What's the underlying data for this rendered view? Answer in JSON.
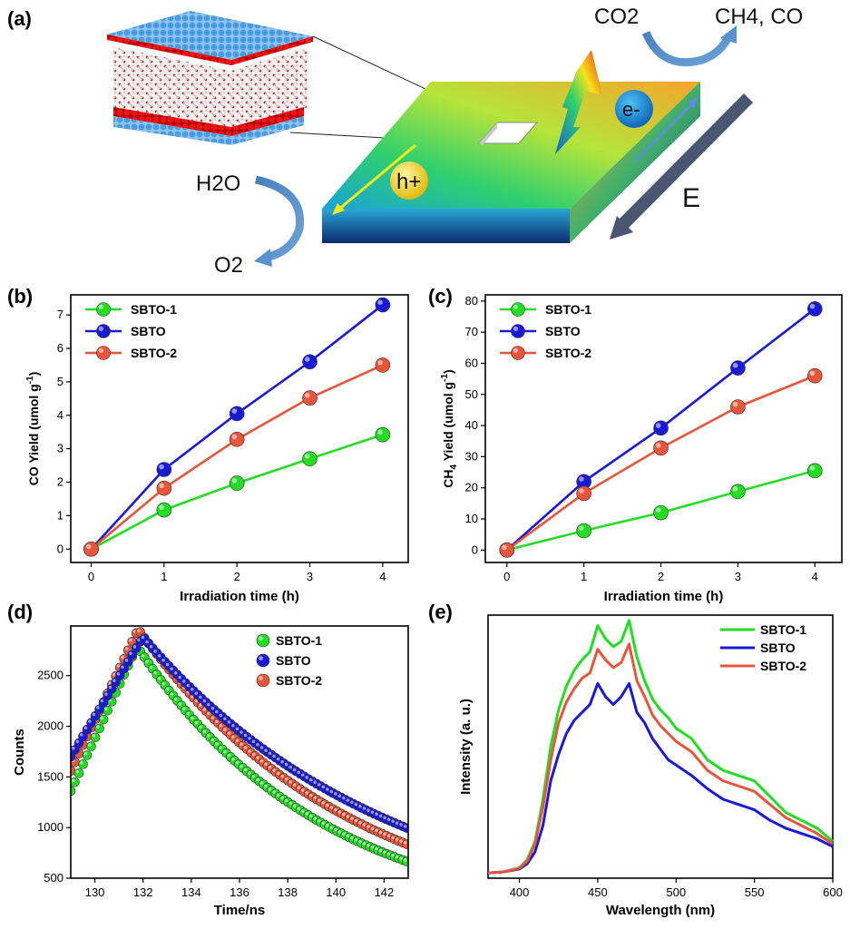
{
  "panels": {
    "a": "(a)",
    "b": "(b)",
    "c": "(c)",
    "d": "(d)",
    "e": "(e)"
  },
  "schematic": {
    "co2": "CO2",
    "co2_sub": "2",
    "products": "CH4, CO",
    "h2o": "H2O",
    "o2": "O2",
    "hole": "h+",
    "electron": "e-",
    "field": "E"
  },
  "chart_data": [
    {
      "panel": "b",
      "type": "line",
      "xlabel": "Irradiation time (h)",
      "ylabel": "CO Yield (umol g-1)",
      "x": [
        0,
        1,
        2,
        3,
        4
      ],
      "xlim": [
        -0.28,
        4.35
      ],
      "ylim": [
        -0.4,
        7.6
      ],
      "xticks": [
        0,
        1,
        2,
        3,
        4
      ],
      "yticks": [
        0,
        1,
        2,
        3,
        4,
        5,
        6,
        7
      ],
      "legend": "top-left",
      "series": [
        {
          "name": "SBTO-1",
          "color": "#22dd22",
          "values": [
            0,
            1.17,
            1.97,
            2.7,
            3.42
          ]
        },
        {
          "name": "SBTO",
          "color": "#1a1ad6",
          "values": [
            0,
            2.38,
            4.05,
            5.6,
            7.3
          ]
        },
        {
          "name": "SBTO-2",
          "color": "#e8553a",
          "values": [
            0,
            1.82,
            3.28,
            4.52,
            5.5
          ]
        }
      ]
    },
    {
      "panel": "c",
      "type": "line",
      "xlabel": "Irradiation time (h)",
      "ylabel": "CH4 Yield (umol g-1)",
      "x": [
        0,
        1,
        2,
        3,
        4
      ],
      "xlim": [
        -0.28,
        4.35
      ],
      "ylim": [
        -4,
        82
      ],
      "xticks": [
        0,
        1,
        2,
        3,
        4
      ],
      "yticks": [
        0,
        10,
        20,
        30,
        40,
        50,
        60,
        70,
        80
      ],
      "legend": "top-left",
      "series": [
        {
          "name": "SBTO-1",
          "color": "#22dd22",
          "values": [
            0,
            6.2,
            12.0,
            18.8,
            25.5
          ]
        },
        {
          "name": "SBTO",
          "color": "#1a1ad6",
          "values": [
            0,
            22.0,
            39.2,
            58.5,
            77.5
          ]
        },
        {
          "name": "SBTO-2",
          "color": "#e8553a",
          "values": [
            0,
            18.2,
            32.8,
            46.0,
            56.0
          ]
        }
      ]
    },
    {
      "panel": "d",
      "type": "scatter",
      "xlabel": "Time/ns",
      "ylabel": "Counts",
      "xlim": [
        129,
        143
      ],
      "ylim": [
        500,
        2990
      ],
      "xticks": [
        130,
        132,
        134,
        136,
        138,
        140,
        142
      ],
      "yticks": [
        500,
        1000,
        1500,
        2000,
        2500
      ],
      "legend": "top-right",
      "series": [
        {
          "name": "SBTO-1",
          "color": "#22dd22",
          "start": [
            129,
            1360
          ],
          "peak": [
            131.75,
            2790
          ],
          "end": [
            143,
            660
          ]
        },
        {
          "name": "SBTO",
          "color": "#1a1ad6",
          "start": [
            129,
            1700
          ],
          "peak": [
            132.0,
            2880
          ],
          "end": [
            143,
            990
          ]
        },
        {
          "name": "SBTO-2",
          "color": "#e8553a",
          "start": [
            129,
            1560
          ],
          "peak": [
            131.8,
            2960
          ],
          "end": [
            143,
            830
          ]
        }
      ]
    },
    {
      "panel": "e",
      "type": "line",
      "xlabel": "Wavelength (nm)",
      "ylabel": "Intensity (a. u.)",
      "xlim": [
        380,
        600
      ],
      "ylim": [
        0,
        1
      ],
      "xticks": [
        400,
        450,
        500,
        550,
        600
      ],
      "legend": "top-right",
      "x": [
        380,
        390,
        400,
        405,
        410,
        415,
        420,
        425,
        430,
        435,
        440,
        445,
        450,
        455,
        460,
        465,
        470,
        475,
        480,
        485,
        490,
        495,
        500,
        505,
        510,
        520,
        530,
        540,
        550,
        560,
        570,
        580,
        590,
        600
      ],
      "series": [
        {
          "name": "SBTO-1",
          "color": "#22dd22",
          "values": [
            0.02,
            0.024,
            0.04,
            0.07,
            0.14,
            0.3,
            0.5,
            0.64,
            0.73,
            0.79,
            0.83,
            0.86,
            0.96,
            0.91,
            0.88,
            0.9,
            0.98,
            0.84,
            0.75,
            0.68,
            0.64,
            0.61,
            0.57,
            0.55,
            0.53,
            0.45,
            0.41,
            0.39,
            0.37,
            0.31,
            0.25,
            0.22,
            0.19,
            0.14
          ]
        },
        {
          "name": "SBTO",
          "color": "#1a1ad6",
          "values": [
            0.02,
            0.024,
            0.035,
            0.055,
            0.1,
            0.2,
            0.37,
            0.47,
            0.55,
            0.6,
            0.63,
            0.66,
            0.74,
            0.69,
            0.66,
            0.69,
            0.74,
            0.63,
            0.59,
            0.53,
            0.49,
            0.45,
            0.43,
            0.41,
            0.39,
            0.34,
            0.3,
            0.28,
            0.26,
            0.22,
            0.19,
            0.17,
            0.15,
            0.12
          ]
        },
        {
          "name": "SBTO-2",
          "color": "#e8553a",
          "values": [
            0.02,
            0.024,
            0.038,
            0.065,
            0.13,
            0.27,
            0.45,
            0.59,
            0.67,
            0.72,
            0.76,
            0.78,
            0.87,
            0.83,
            0.8,
            0.82,
            0.89,
            0.75,
            0.69,
            0.62,
            0.58,
            0.55,
            0.52,
            0.5,
            0.48,
            0.41,
            0.37,
            0.35,
            0.33,
            0.28,
            0.23,
            0.2,
            0.17,
            0.13
          ]
        }
      ]
    }
  ]
}
